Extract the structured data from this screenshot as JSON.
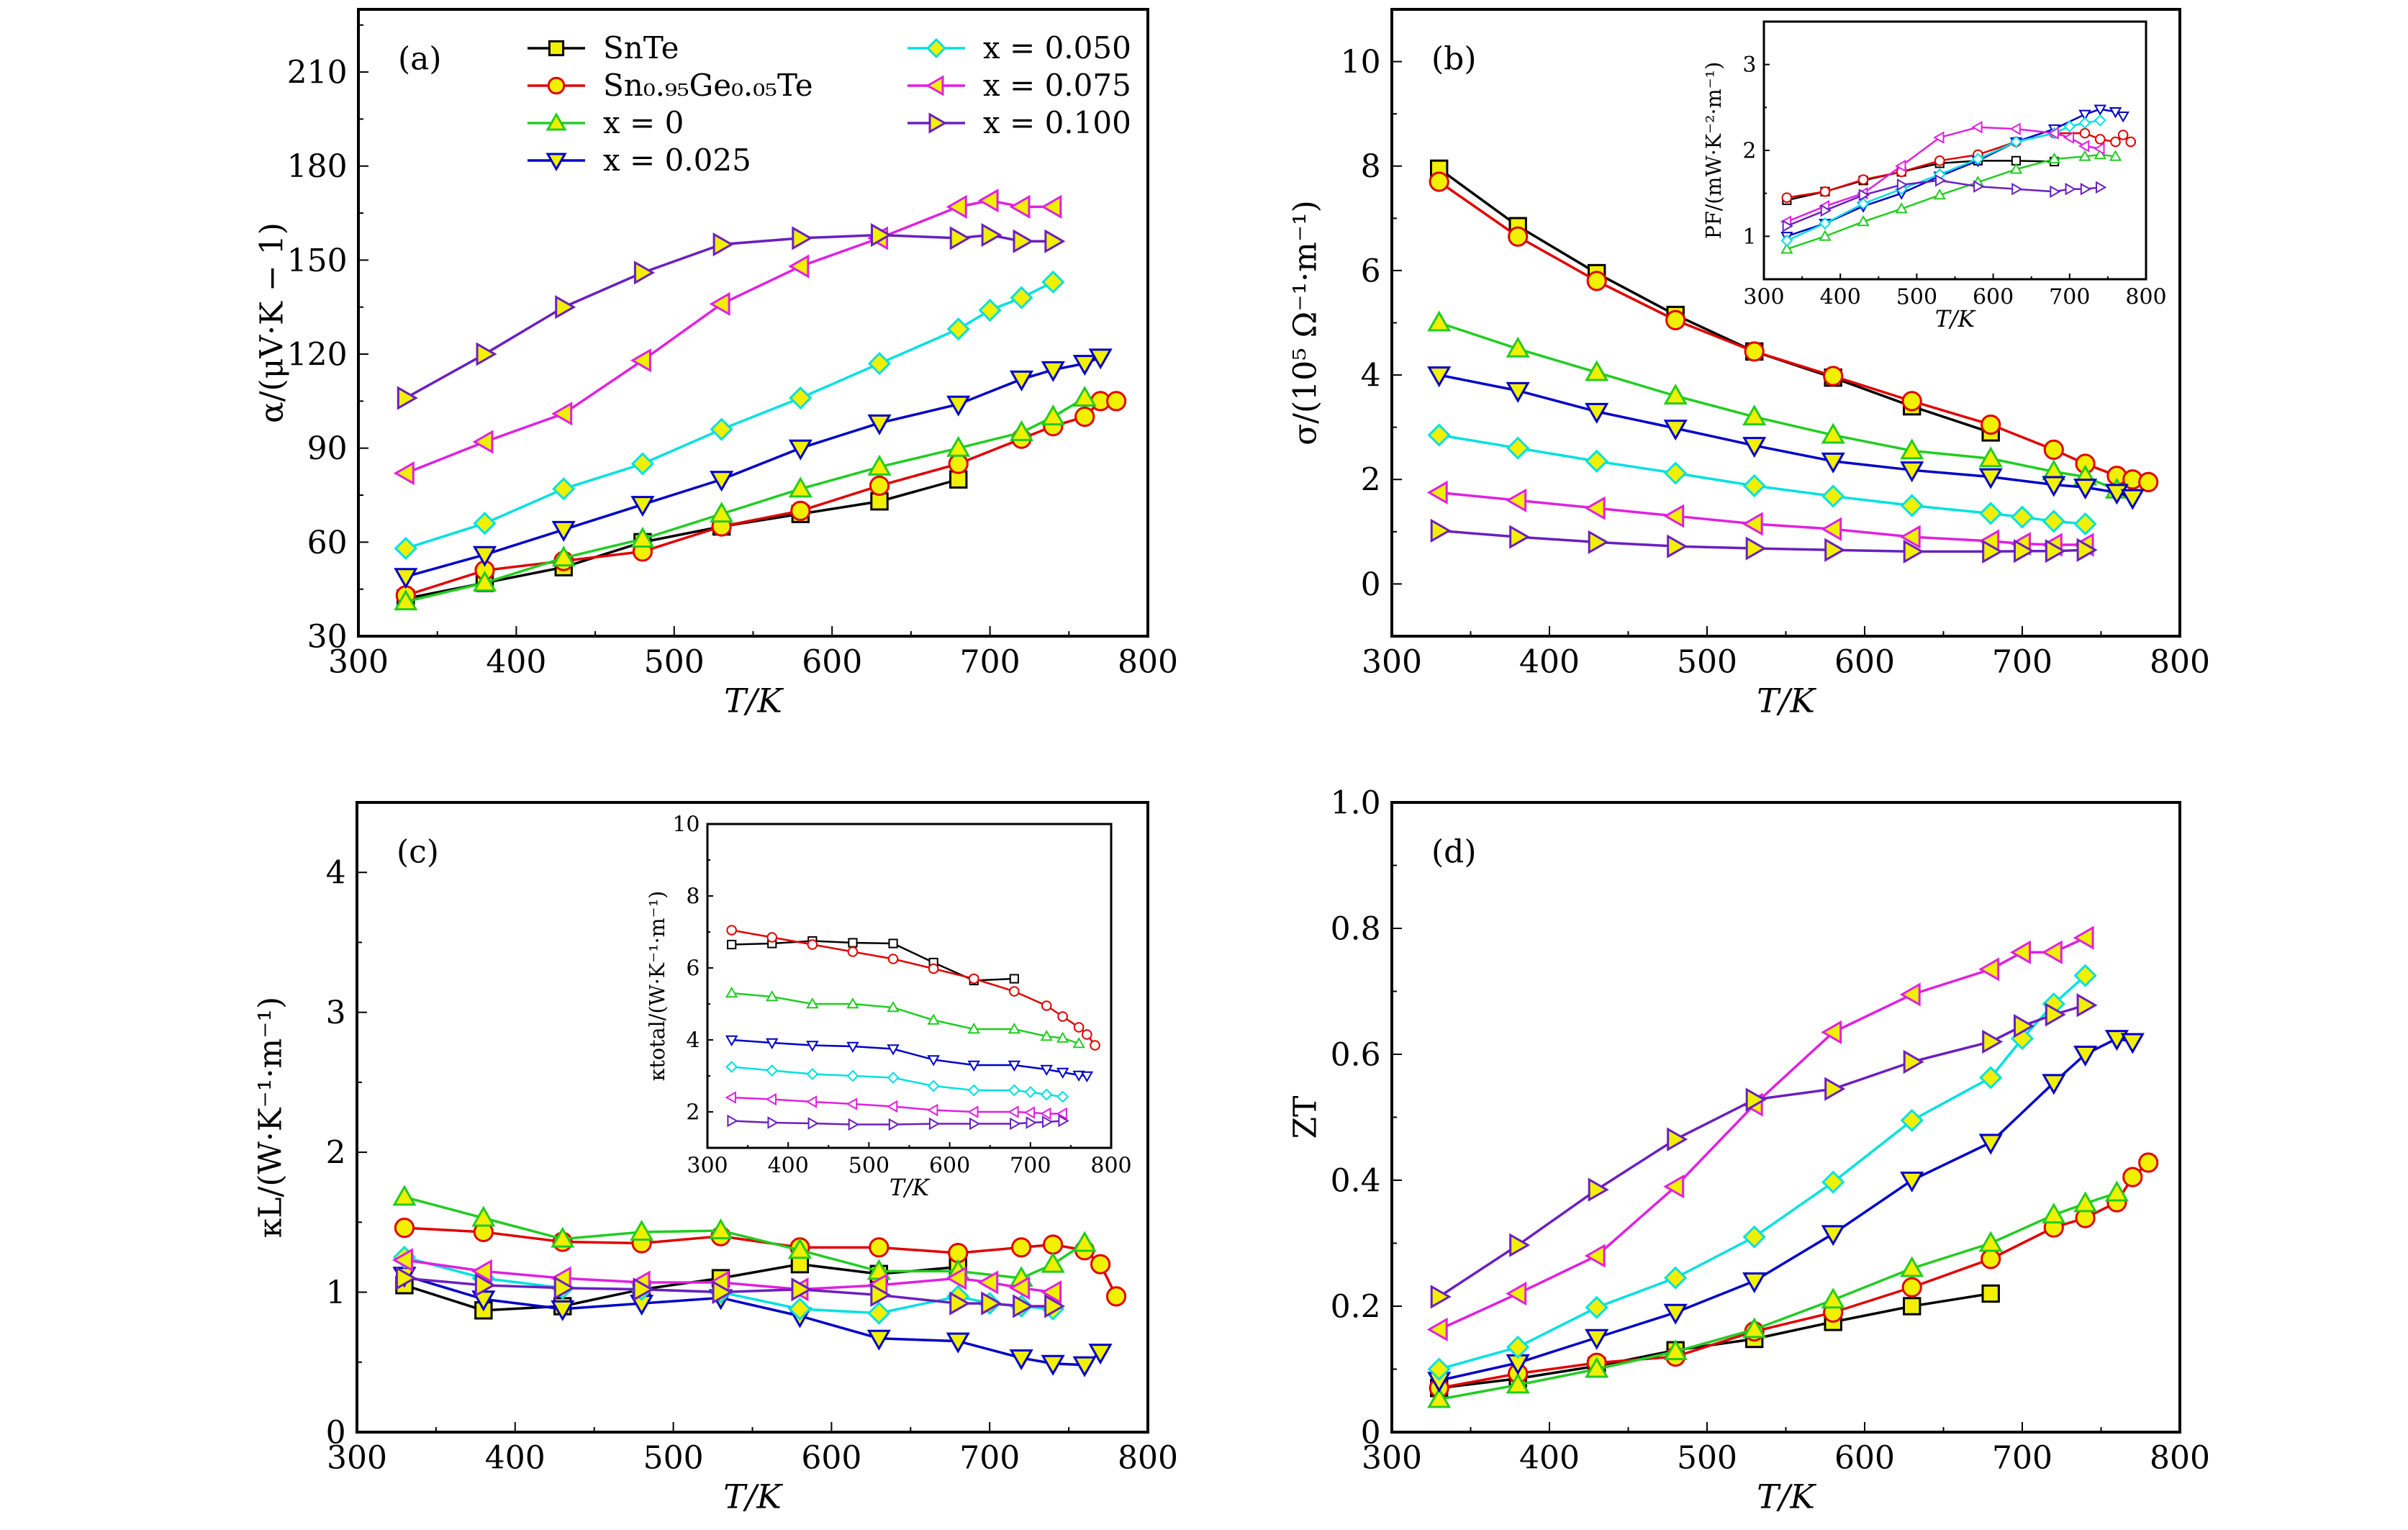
{
  "series_styles": [
    {
      "name": "SnTe",
      "color": "#000000",
      "marker": "square"
    },
    {
      "name": "Sn₀.₉₅Ge₀.₀₅Te",
      "color": "#e00000",
      "marker": "circle"
    },
    {
      "name": "x = 0",
      "color": "#22cc22",
      "marker": "triangle-up"
    },
    {
      "name": "x = 0.025",
      "color": "#0000c8",
      "marker": "triangle-down"
    },
    {
      "name": "x = 0.050",
      "color": "#00e0e0",
      "marker": "diamond"
    },
    {
      "name": "x = 0.075",
      "color": "#e020e0",
      "marker": "triangle-left"
    },
    {
      "name": "x = 0.100",
      "color": "#6a1fc0",
      "marker": "triangle-right"
    }
  ],
  "marker_fill": "#f0f000",
  "temperatures": [
    [
      330,
      380,
      430,
      480,
      530,
      580,
      630,
      680
    ],
    [
      330,
      380,
      430,
      480,
      530,
      580,
      630,
      680,
      720,
      740,
      760,
      770,
      780
    ],
    [
      330,
      380,
      430,
      480,
      530,
      580,
      630,
      680,
      720,
      740,
      760
    ],
    [
      330,
      380,
      430,
      480,
      530,
      580,
      630,
      680,
      720,
      740,
      760,
      770
    ],
    [
      330,
      380,
      430,
      480,
      530,
      580,
      630,
      680,
      700,
      720,
      740
    ],
    [
      330,
      380,
      430,
      480,
      530,
      580,
      630,
      680,
      700,
      720,
      740
    ],
    [
      330,
      380,
      430,
      480,
      530,
      580,
      630,
      680,
      700,
      720,
      740
    ]
  ],
  "chart_data": [
    {
      "type": "line",
      "panel": "(a)",
      "xlabel": "T/K",
      "ylabel": "α/(μV·K − 1)",
      "xlim": [
        300,
        800
      ],
      "ylim": [
        30,
        230
      ],
      "xticks": [
        "300",
        "400",
        "500",
        "600",
        "700",
        "800"
      ],
      "yticks": [
        "30",
        "60",
        "90",
        "120",
        "150",
        "180",
        "210"
      ],
      "legend": "top-left",
      "values": [
        [
          42,
          47,
          52,
          60,
          65,
          69,
          73,
          80
        ],
        [
          43,
          51,
          54,
          57,
          65,
          70,
          78,
          85,
          93,
          97,
          100,
          105,
          105
        ],
        [
          41,
          47,
          55,
          61,
          69,
          77,
          84,
          90,
          95,
          100,
          106
        ],
        [
          49,
          56,
          64,
          72,
          80,
          90,
          98,
          104,
          112,
          115,
          117,
          119
        ],
        [
          58,
          66,
          77,
          85,
          96,
          106,
          117,
          128,
          134,
          138,
          143
        ],
        [
          82,
          92,
          101,
          118,
          136,
          148,
          157,
          167,
          169,
          167,
          167
        ],
        [
          106,
          120,
          135,
          146,
          155,
          157,
          158,
          157,
          158,
          156,
          156
        ]
      ]
    },
    {
      "type": "line",
      "panel": "(b)",
      "xlabel": "T/K",
      "ylabel": "σ/(10⁵ Ω⁻¹·m⁻¹)",
      "xlim": [
        300,
        800
      ],
      "ylim": [
        -1,
        11
      ],
      "xticks": [
        "300",
        "400",
        "500",
        "600",
        "700",
        "800"
      ],
      "yticks": [
        "0",
        "2",
        "4",
        "6",
        "8",
        "10"
      ],
      "values": [
        [
          7.95,
          6.85,
          5.95,
          5.15,
          4.45,
          3.95,
          3.4,
          2.9
        ],
        [
          7.7,
          6.65,
          5.8,
          5.05,
          4.45,
          3.98,
          3.5,
          3.05,
          2.57,
          2.3,
          2.07,
          2.0,
          1.95
        ],
        [
          5.0,
          4.5,
          4.05,
          3.6,
          3.2,
          2.85,
          2.55,
          2.4,
          2.15,
          2.05,
          1.8
        ],
        [
          4.0,
          3.7,
          3.3,
          2.98,
          2.65,
          2.35,
          2.18,
          2.05,
          1.9,
          1.85,
          1.75,
          1.65
        ],
        [
          2.85,
          2.6,
          2.35,
          2.12,
          1.88,
          1.68,
          1.5,
          1.35,
          1.28,
          1.2,
          1.15
        ],
        [
          1.75,
          1.6,
          1.45,
          1.3,
          1.15,
          1.05,
          0.9,
          0.82,
          0.77,
          0.75,
          0.75
        ],
        [
          1.02,
          0.9,
          0.8,
          0.72,
          0.68,
          0.65,
          0.62,
          0.62,
          0.63,
          0.63,
          0.65
        ]
      ]
    },
    {
      "type": "line",
      "panel": "",
      "inset_of": "(b)",
      "xlabel": "T/K",
      "ylabel": "PF/(mW·K⁻²·m⁻¹)",
      "xlim": [
        300,
        800
      ],
      "ylim": [
        0.5,
        3.5
      ],
      "xticks": [
        "300",
        "400",
        "500",
        "600",
        "700",
        "800"
      ],
      "yticks": [
        "1",
        "2",
        "3"
      ],
      "values": [
        [
          1.42,
          1.52,
          1.65,
          1.75,
          1.85,
          1.88,
          1.88,
          1.87
        ],
        [
          1.45,
          1.52,
          1.66,
          1.75,
          1.88,
          1.95,
          2.1,
          2.2,
          2.2,
          2.13,
          2.1,
          2.18,
          2.1
        ],
        [
          0.85,
          1.0,
          1.17,
          1.32,
          1.48,
          1.63,
          1.78,
          1.9,
          1.93,
          1.95,
          1.93
        ],
        [
          1.0,
          1.15,
          1.35,
          1.5,
          1.7,
          1.88,
          2.1,
          2.25,
          2.42,
          2.48,
          2.45,
          2.4
        ],
        [
          0.95,
          1.15,
          1.38,
          1.55,
          1.72,
          1.9,
          2.1,
          2.2,
          2.28,
          2.32,
          2.35
        ],
        [
          1.17,
          1.35,
          1.5,
          1.82,
          2.15,
          2.27,
          2.25,
          2.2,
          2.15,
          2.05,
          2.02
        ],
        [
          1.12,
          1.3,
          1.48,
          1.6,
          1.65,
          1.58,
          1.55,
          1.52,
          1.55,
          1.55,
          1.57
        ]
      ]
    },
    {
      "type": "line",
      "panel": "(c)",
      "xlabel": "T/K",
      "ylabel": "κL/(W·K⁻¹·m⁻¹)",
      "xlim": [
        300,
        800
      ],
      "ylim": [
        0,
        4.5
      ],
      "xticks": [
        "300",
        "400",
        "500",
        "600",
        "700",
        "800"
      ],
      "yticks": [
        "0",
        "1",
        "2",
        "3",
        "4"
      ],
      "values": [
        [
          1.05,
          0.87,
          0.9,
          1.02,
          1.1,
          1.2,
          1.13,
          1.18
        ],
        [
          1.46,
          1.43,
          1.36,
          1.35,
          1.4,
          1.32,
          1.32,
          1.28,
          1.32,
          1.34,
          1.3,
          1.2,
          0.97
        ],
        [
          1.68,
          1.53,
          1.38,
          1.43,
          1.44,
          1.3,
          1.15,
          1.15,
          1.1,
          1.2,
          1.35
        ],
        [
          1.12,
          0.95,
          0.88,
          0.92,
          0.96,
          0.83,
          0.67,
          0.65,
          0.53,
          0.49,
          0.48,
          0.57
        ],
        [
          1.25,
          1.1,
          1.03,
          1.02,
          1.0,
          0.88,
          0.85,
          0.97,
          0.92,
          0.9,
          0.88
        ],
        [
          1.23,
          1.15,
          1.1,
          1.07,
          1.07,
          1.02,
          1.05,
          1.1,
          1.07,
          1.03,
          1.0
        ],
        [
          1.1,
          1.05,
          1.03,
          1.02,
          1.0,
          1.02,
          0.98,
          0.92,
          0.92,
          0.9,
          0.9
        ]
      ]
    },
    {
      "type": "line",
      "panel": "",
      "inset_of": "(c)",
      "xlabel": "T/K",
      "ylabel": "κtotal/(W·K⁻¹·m⁻¹)",
      "xlim": [
        300,
        800
      ],
      "ylim": [
        1,
        10
      ],
      "xticks": [
        "300",
        "400",
        "500",
        "600",
        "700",
        "800"
      ],
      "yticks": [
        "2",
        "4",
        "6",
        "8",
        "10"
      ],
      "values": [
        [
          6.65,
          6.68,
          6.75,
          6.7,
          6.68,
          6.15,
          5.65,
          5.7
        ],
        [
          7.05,
          6.85,
          6.65,
          6.45,
          6.25,
          5.98,
          5.7,
          5.35,
          4.95,
          4.65,
          4.35,
          4.15,
          3.85
        ],
        [
          5.3,
          5.2,
          5.0,
          5.0,
          4.9,
          4.55,
          4.3,
          4.3,
          4.1,
          4.05,
          3.9
        ],
        [
          4.0,
          3.92,
          3.85,
          3.82,
          3.75,
          3.45,
          3.3,
          3.3,
          3.18,
          3.1,
          3.02,
          3.0
        ],
        [
          3.25,
          3.15,
          3.05,
          3.0,
          2.95,
          2.72,
          2.6,
          2.6,
          2.55,
          2.48,
          2.42
        ],
        [
          2.4,
          2.35,
          2.28,
          2.22,
          2.15,
          2.05,
          2.0,
          2.0,
          1.98,
          1.95,
          1.95
        ],
        [
          1.75,
          1.7,
          1.68,
          1.65,
          1.65,
          1.67,
          1.67,
          1.67,
          1.7,
          1.72,
          1.75
        ]
      ]
    },
    {
      "type": "line",
      "panel": "(d)",
      "xlabel": "T/K",
      "ylabel": "ZT",
      "xlim": [
        300,
        800
      ],
      "ylim": [
        0,
        1
      ],
      "xticks": [
        "300",
        "400",
        "500",
        "600",
        "700",
        "800"
      ],
      "yticks": [
        "0",
        "0.2",
        "0.4",
        "0.6",
        "0.8",
        "1.0"
      ],
      "values": [
        [
          0.07,
          0.085,
          0.105,
          0.13,
          0.148,
          0.175,
          0.2,
          0.22
        ],
        [
          0.07,
          0.093,
          0.11,
          0.12,
          0.16,
          0.19,
          0.23,
          0.275,
          0.325,
          0.34,
          0.365,
          0.405,
          0.428
        ],
        [
          0.052,
          0.075,
          0.1,
          0.128,
          0.163,
          0.21,
          0.26,
          0.3,
          0.345,
          0.363,
          0.38
        ],
        [
          0.082,
          0.11,
          0.15,
          0.19,
          0.24,
          0.315,
          0.4,
          0.46,
          0.555,
          0.6,
          0.625,
          0.62
        ],
        [
          0.1,
          0.135,
          0.198,
          0.245,
          0.31,
          0.397,
          0.495,
          0.563,
          0.625,
          0.68,
          0.725
        ],
        [
          0.163,
          0.22,
          0.28,
          0.39,
          0.52,
          0.635,
          0.695,
          0.735,
          0.762,
          0.762,
          0.785
        ],
        [
          0.215,
          0.297,
          0.385,
          0.465,
          0.528,
          0.545,
          0.588,
          0.62,
          0.645,
          0.663,
          0.678
        ]
      ]
    }
  ]
}
